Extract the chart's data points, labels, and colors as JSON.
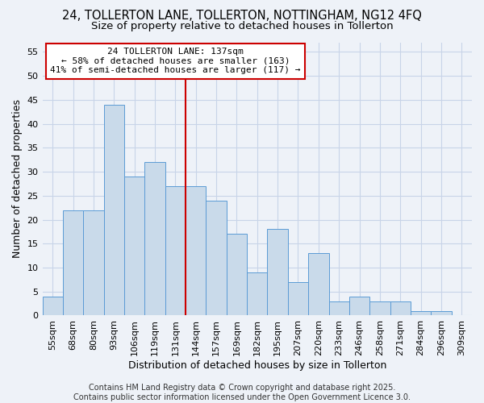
{
  "title1": "24, TOLLERTON LANE, TOLLERTON, NOTTINGHAM, NG12 4FQ",
  "title2": "Size of property relative to detached houses in Tollerton",
  "xlabel": "Distribution of detached houses by size in Tollerton",
  "ylabel": "Number of detached properties",
  "categories": [
    "55sqm",
    "68sqm",
    "80sqm",
    "93sqm",
    "106sqm",
    "119sqm",
    "131sqm",
    "144sqm",
    "157sqm",
    "169sqm",
    "182sqm",
    "195sqm",
    "207sqm",
    "220sqm",
    "233sqm",
    "246sqm",
    "258sqm",
    "271sqm",
    "284sqm",
    "296sqm",
    "309sqm"
  ],
  "values": [
    4,
    22,
    22,
    44,
    29,
    32,
    27,
    27,
    24,
    17,
    9,
    18,
    7,
    13,
    3,
    4,
    3,
    3,
    1,
    1,
    0
  ],
  "bar_color": "#c9daea",
  "bar_edge_color": "#5b9bd5",
  "grid_color": "#c8d4e8",
  "background_color": "#eef2f8",
  "vline_color": "#cc0000",
  "annotation_text": "24 TOLLERTON LANE: 137sqm\n← 58% of detached houses are smaller (163)\n41% of semi-detached houses are larger (117) →",
  "annotation_box_color": "#ffffff",
  "annotation_box_edge": "#cc0000",
  "footer_text": "Contains HM Land Registry data © Crown copyright and database right 2025.\nContains public sector information licensed under the Open Government Licence 3.0.",
  "ylim": [
    0,
    57
  ],
  "yticks": [
    0,
    5,
    10,
    15,
    20,
    25,
    30,
    35,
    40,
    45,
    50,
    55
  ],
  "title_fontsize": 10.5,
  "subtitle_fontsize": 9.5,
  "axis_label_fontsize": 9,
  "tick_fontsize": 8,
  "annot_fontsize": 8,
  "footer_fontsize": 7
}
